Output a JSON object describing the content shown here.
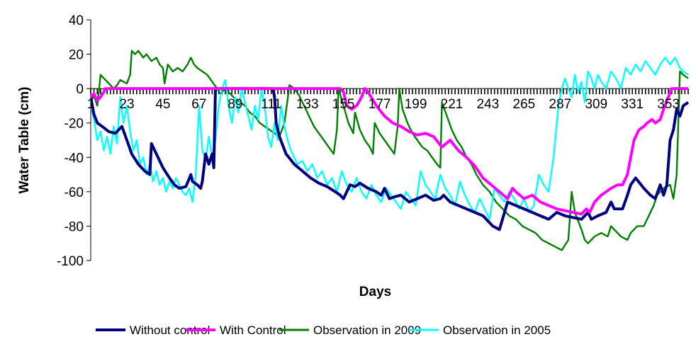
{
  "chart_data": {
    "type": "line",
    "xlabel": "Days",
    "ylabel": "Water Table (cm)",
    "xlim": [
      1,
      365
    ],
    "ylim": [
      -100,
      40
    ],
    "yticks": [
      40,
      20,
      0,
      -20,
      -40,
      -60,
      -80,
      -100
    ],
    "xticks": [
      1,
      23,
      45,
      67,
      89,
      111,
      133,
      155,
      177,
      199,
      221,
      243,
      265,
      287,
      309,
      331,
      353
    ],
    "legend_position": "bottom",
    "series": [
      {
        "name": "Without control",
        "color": "#000080",
        "x": [
          1,
          3,
          5,
          8,
          12,
          16,
          18,
          20,
          23,
          26,
          30,
          34,
          37,
          38,
          41,
          45,
          49,
          52,
          55,
          59,
          62,
          63,
          66,
          68,
          69,
          71,
          73,
          75,
          76,
          77,
          80,
          84,
          89,
          95,
          100,
          105,
          108,
          110,
          112,
          113,
          114,
          116,
          120,
          125,
          130,
          135,
          140,
          145,
          150,
          153,
          155,
          157,
          159,
          162,
          165,
          170,
          175,
          178,
          180,
          183,
          186,
          190,
          195,
          200,
          205,
          210,
          214,
          216,
          220,
          225,
          230,
          235,
          240,
          244,
          246,
          250,
          255,
          260,
          265,
          270,
          275,
          280,
          285,
          290,
          295,
          300,
          304,
          306,
          310,
          315,
          318,
          320,
          325,
          328,
          330,
          333,
          338,
          342,
          345,
          348,
          350,
          352,
          354,
          356,
          358,
          360,
          362,
          365
        ],
        "y": [
          -5,
          -15,
          -20,
          -22,
          -25,
          -26,
          -24,
          -22,
          -30,
          -38,
          -44,
          -48,
          -50,
          -32,
          -38,
          -46,
          -52,
          -56,
          -58,
          -57,
          -50,
          -54,
          -56,
          -58,
          -54,
          -38,
          -44,
          -38,
          -46,
          0,
          0,
          0,
          0,
          0,
          0,
          0,
          0,
          0,
          0,
          -5,
          -20,
          -28,
          -38,
          -44,
          -48,
          -52,
          -55,
          -57,
          -60,
          -62,
          -64,
          -60,
          -56,
          -57,
          -55,
          -58,
          -60,
          -62,
          -58,
          -64,
          -63,
          -62,
          -66,
          -64,
          -62,
          -65,
          -64,
          -62,
          -66,
          -68,
          -70,
          -72,
          -74,
          -78,
          -80,
          -82,
          -66,
          -68,
          -70,
          -72,
          -74,
          -76,
          -72,
          -74,
          -75,
          -76,
          -72,
          -76,
          -74,
          -72,
          -66,
          -70,
          -70,
          -62,
          -56,
          -52,
          -58,
          -62,
          -64,
          -56,
          -62,
          -56,
          -30,
          -24,
          -12,
          -16,
          -10,
          -8
        ]
      },
      {
        "name": "With Control",
        "color": "#FF00FF",
        "x": [
          1,
          3,
          5,
          7,
          9,
          10,
          12,
          14,
          16,
          20,
          25,
          40,
          60,
          80,
          100,
          120,
          140,
          150,
          153,
          155,
          157,
          160,
          163,
          166,
          168,
          170,
          175,
          180,
          185,
          190,
          195,
          200,
          205,
          210,
          215,
          220,
          225,
          230,
          235,
          240,
          245,
          250,
          255,
          258,
          260,
          265,
          270,
          275,
          280,
          285,
          290,
          295,
          300,
          303,
          305,
          308,
          312,
          315,
          318,
          322,
          325,
          328,
          330,
          332,
          335,
          338,
          340,
          343,
          345,
          348,
          350,
          355,
          360,
          365
        ],
        "y": [
          -5,
          -3,
          -7,
          -5,
          -2,
          0,
          0,
          0,
          0,
          0,
          0,
          0,
          0,
          0,
          0,
          0,
          0,
          0,
          0,
          -2,
          -10,
          -12,
          -10,
          -5,
          0,
          -2,
          -10,
          -16,
          -20,
          -22,
          -25,
          -27,
          -26,
          -28,
          -34,
          -30,
          -36,
          -40,
          -45,
          -52,
          -56,
          -60,
          -64,
          -58,
          -60,
          -64,
          -62,
          -66,
          -68,
          -70,
          -71,
          -72,
          -73,
          -70,
          -72,
          -66,
          -62,
          -60,
          -58,
          -56,
          -56,
          -50,
          -40,
          -30,
          -24,
          -22,
          -20,
          -18,
          -20,
          -18,
          -12,
          0,
          0,
          0
        ]
      },
      {
        "name": "Observation in 2009",
        "color": "#008000",
        "x": [
          1,
          3,
          5,
          7,
          9,
          11,
          13,
          15,
          17,
          19,
          21,
          23,
          25,
          26,
          28,
          30,
          33,
          35,
          38,
          41,
          43,
          45,
          46,
          48,
          51,
          54,
          57,
          60,
          62,
          64,
          66,
          69,
          72,
          75,
          78,
          80,
          83,
          86,
          89,
          92,
          95,
          98,
          101,
          104,
          107,
          110,
          113,
          116,
          119,
          121,
          122,
          125,
          128,
          131,
          134,
          137,
          140,
          143,
          146,
          149,
          151,
          152,
          155,
          158,
          161,
          162,
          165,
          168,
          171,
          173,
          174,
          177,
          180,
          183,
          186,
          188,
          189,
          191,
          194,
          197,
          200,
          203,
          206,
          209,
          212,
          214,
          215,
          218,
          221,
          224,
          227,
          230,
          233,
          236,
          240,
          244,
          248,
          252,
          256,
          260,
          264,
          268,
          272,
          276,
          280,
          284,
          288,
          292,
          294,
          296,
          300,
          302,
          304,
          308,
          312,
          316,
          318,
          320,
          324,
          328,
          330,
          334,
          338,
          342,
          344,
          346,
          350,
          354,
          356,
          358,
          360,
          362,
          365
        ],
        "y": [
          -8,
          -4,
          -10,
          8,
          6,
          4,
          2,
          0,
          2,
          5,
          4,
          3,
          8,
          22,
          20,
          22,
          18,
          20,
          16,
          18,
          14,
          12,
          3,
          14,
          10,
          12,
          10,
          14,
          18,
          14,
          12,
          10,
          8,
          4,
          0,
          -3,
          0,
          -3,
          -6,
          -8,
          -10,
          -14,
          -16,
          -20,
          -22,
          -24,
          -26,
          -28,
          -20,
          -6,
          2,
          0,
          -4,
          -10,
          -16,
          -22,
          -26,
          -30,
          -34,
          -38,
          -24,
          0,
          -10,
          -20,
          -26,
          -14,
          -24,
          -30,
          -34,
          -38,
          -20,
          -26,
          -30,
          -34,
          -38,
          -22,
          0,
          -12,
          -20,
          -26,
          -30,
          -34,
          -36,
          -40,
          -44,
          -46,
          -8,
          -16,
          -24,
          -30,
          -34,
          -40,
          -44,
          -50,
          -56,
          -60,
          -66,
          -70,
          -74,
          -76,
          -80,
          -82,
          -84,
          -88,
          -90,
          -92,
          -94,
          -88,
          -60,
          -72,
          -82,
          -88,
          -90,
          -86,
          -84,
          -86,
          -80,
          -82,
          -86,
          -88,
          -84,
          -80,
          -80,
          -72,
          -68,
          -62,
          -58,
          -56,
          -64,
          -50,
          10,
          8,
          6
        ]
      },
      {
        "name": "Observation in 2005",
        "color": "#00FFFF",
        "x": [
          1,
          3,
          5,
          7,
          9,
          11,
          13,
          15,
          17,
          19,
          21,
          23,
          25,
          27,
          29,
          31,
          33,
          35,
          37,
          39,
          41,
          43,
          45,
          47,
          49,
          51,
          53,
          55,
          57,
          59,
          61,
          63,
          65,
          67,
          69,
          71,
          73,
          75,
          77,
          79,
          81,
          83,
          85,
          87,
          89,
          91,
          93,
          95,
          97,
          99,
          101,
          103,
          105,
          107,
          109,
          111,
          113,
          115,
          117,
          119,
          121,
          123,
          125,
          127,
          130,
          133,
          136,
          139,
          142,
          145,
          148,
          151,
          154,
          157,
          160,
          163,
          166,
          169,
          172,
          175,
          178,
          181,
          184,
          187,
          190,
          193,
          196,
          199,
          202,
          205,
          208,
          211,
          214,
          217,
          220,
          223,
          226,
          229,
          232,
          235,
          238,
          241,
          244,
          247,
          250,
          253,
          256,
          259,
          262,
          265,
          268,
          271,
          274,
          277,
          280,
          283,
          286,
          288,
          290,
          292,
          294,
          296,
          298,
          300,
          302,
          304,
          306,
          308,
          310,
          312,
          315,
          318,
          321,
          324,
          327,
          330,
          333,
          336,
          339,
          342,
          345,
          348,
          351,
          354,
          357,
          360,
          362,
          365
        ],
        "y": [
          -10,
          -18,
          -30,
          -25,
          -36,
          -28,
          -38,
          -22,
          -32,
          -5,
          -20,
          -10,
          -25,
          -36,
          -30,
          -44,
          -40,
          -50,
          -44,
          -54,
          -48,
          -56,
          -52,
          -60,
          -54,
          -58,
          -52,
          -56,
          -60,
          -62,
          -58,
          -66,
          -50,
          -10,
          -36,
          -42,
          -28,
          -40,
          -30,
          -10,
          0,
          5,
          -10,
          -20,
          -5,
          -14,
          0,
          -8,
          -16,
          -24,
          -10,
          -18,
          0,
          -10,
          -28,
          -34,
          -20,
          -30,
          -10,
          -22,
          -30,
          -36,
          -40,
          -44,
          -42,
          -48,
          -44,
          -52,
          -48,
          -56,
          -52,
          -60,
          -48,
          -56,
          -60,
          -52,
          -60,
          -64,
          -56,
          -62,
          -66,
          -58,
          -62,
          -66,
          -70,
          -60,
          -64,
          -68,
          -48,
          -56,
          -60,
          -64,
          -50,
          -58,
          -62,
          -68,
          -54,
          -62,
          -68,
          -72,
          -64,
          -70,
          -76,
          -58,
          -62,
          -66,
          -60,
          -64,
          -70,
          -64,
          -72,
          -68,
          -50,
          -56,
          -60,
          -40,
          -10,
          0,
          6,
          0,
          -5,
          8,
          -2,
          4,
          -8,
          10,
          6,
          0,
          8,
          4,
          0,
          10,
          6,
          0,
          12,
          8,
          14,
          10,
          16,
          12,
          8,
          14,
          18,
          14,
          18,
          12,
          10,
          8
        ]
      }
    ]
  }
}
